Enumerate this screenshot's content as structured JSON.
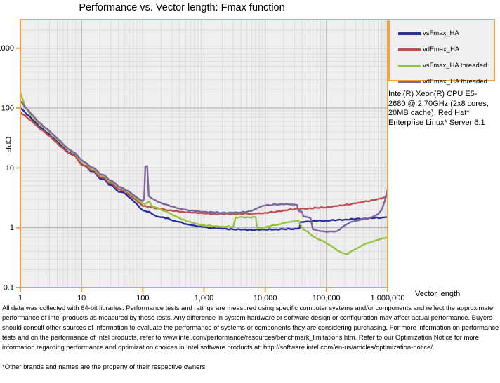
{
  "title": "Performance vs. Vector length: Fmax function",
  "system_info_lines": [
    "Intel(R) Xeon(R) CPU E5-",
    "2680 @ 2.70GHz (2x8 cores,",
    "20MB cache), Red Hat*",
    "Enterprise Linux* Server 6.1"
  ],
  "footer": {
    "disclaimer": "All data was collected with 64-bit libraries. Performance tests and ratings are measured using specific computer systems and/or components and reflect the approximate performance of Intel products as measured by those tests. Any difference in system hardware or software design or configuration may affect actual performance. Buyers should consult other sources of information to evaluate the performance of systems or components they are considering purchasing. For more information on performance tests and on the performance of Intel products, refer to www.intel.com/performance/resources/benchmark_limitations.htm.  Refer to our Optimization Notice for more information regarding performance and optimization choices in Intel software products at: http://software.intel.com/en-us/articles/optimization-notice/.",
    "footnote": "*Other brands and names are the property of their respective owners"
  },
  "colors": {
    "frame_orange": "#f8a03a",
    "plot_background": "#efefef",
    "grid_major": "#ababab",
    "grid_minor": "#dbdbdb",
    "text": "#000000"
  },
  "chart_data": {
    "type": "line",
    "title": "Performance vs. Vector length: Fmax function",
    "xlabel": "Vector length",
    "ylabel": "CPE",
    "x_scale": "log",
    "y_scale": "log",
    "xlim": [
      1,
      1000000
    ],
    "ylim": [
      0.1,
      3000
    ],
    "grid": "major and minor log gridlines, both axes",
    "legend_position": "outside top-right",
    "x_ticks": {
      "values": [
        1,
        10,
        100,
        1000,
        10000,
        100000,
        1000000
      ],
      "labels": [
        "1",
        "10",
        "100",
        "1,000",
        "10,000",
        "100,000",
        "1,000,000"
      ]
    },
    "y_ticks": {
      "values": [
        1000,
        100,
        10,
        1,
        0.1
      ],
      "labels": [
        "1000",
        "100",
        "10",
        "1",
        "0.1"
      ]
    },
    "series": [
      {
        "name": "vsFmax_HA",
        "color": "#2a2f9c",
        "points": [
          [
            1,
            100
          ],
          [
            1.5,
            68
          ],
          [
            2,
            50
          ],
          [
            3,
            36
          ],
          [
            4,
            27
          ],
          [
            5,
            22
          ],
          [
            6,
            18.5
          ],
          [
            7,
            17
          ],
          [
            8,
            16
          ],
          [
            9,
            13
          ],
          [
            10,
            11.5
          ],
          [
            12,
            10.5
          ],
          [
            14,
            8.8
          ],
          [
            16,
            8.7
          ],
          [
            20,
            6.6
          ],
          [
            24,
            6.4
          ],
          [
            28,
            5.2
          ],
          [
            32,
            5.1
          ],
          [
            40,
            4.0
          ],
          [
            48,
            3.9
          ],
          [
            64,
            3.1
          ],
          [
            80,
            2.5
          ],
          [
            100,
            1.95
          ],
          [
            128,
            1.85
          ],
          [
            160,
            1.6
          ],
          [
            200,
            1.5
          ],
          [
            256,
            1.45
          ],
          [
            320,
            1.3
          ],
          [
            400,
            1.25
          ],
          [
            512,
            1.15
          ],
          [
            640,
            1.1
          ],
          [
            800,
            1.05
          ],
          [
            1000,
            1.02
          ],
          [
            1500,
            0.98
          ],
          [
            2000,
            0.96
          ],
          [
            3000,
            0.94
          ],
          [
            4000,
            0.93
          ],
          [
            6000,
            0.92
          ],
          [
            8000,
            0.92
          ],
          [
            10000,
            0.93
          ],
          [
            15000,
            0.94
          ],
          [
            20000,
            0.95
          ],
          [
            30000,
            0.96
          ],
          [
            36000,
            0.97
          ],
          [
            38000,
            1.25
          ],
          [
            50000,
            1.28
          ],
          [
            70000,
            1.3
          ],
          [
            100000,
            1.32
          ],
          [
            150000,
            1.35
          ],
          [
            200000,
            1.37
          ],
          [
            300000,
            1.4
          ],
          [
            400000,
            1.42
          ],
          [
            600000,
            1.45
          ],
          [
            800000,
            1.48
          ],
          [
            1000000,
            1.52
          ]
        ]
      },
      {
        "name": "vdFmax_HA",
        "color": "#c0504d",
        "points": [
          [
            1,
            85
          ],
          [
            1.5,
            62
          ],
          [
            2,
            47
          ],
          [
            3,
            34
          ],
          [
            4,
            26
          ],
          [
            5,
            21
          ],
          [
            6,
            18
          ],
          [
            7,
            16.5
          ],
          [
            8,
            15.5
          ],
          [
            9,
            12.8
          ],
          [
            10,
            11.2
          ],
          [
            12,
            10.8
          ],
          [
            14,
            9.2
          ],
          [
            16,
            9.0
          ],
          [
            20,
            7.0
          ],
          [
            24,
            6.8
          ],
          [
            28,
            5.6
          ],
          [
            32,
            5.4
          ],
          [
            40,
            4.4
          ],
          [
            48,
            4.2
          ],
          [
            64,
            3.4
          ],
          [
            80,
            2.8
          ],
          [
            100,
            2.3
          ],
          [
            128,
            2.25
          ],
          [
            160,
            2.1
          ],
          [
            200,
            2.05
          ],
          [
            256,
            1.95
          ],
          [
            320,
            1.9
          ],
          [
            400,
            1.85
          ],
          [
            512,
            1.8
          ],
          [
            640,
            1.78
          ],
          [
            800,
            1.75
          ],
          [
            1000,
            1.73
          ],
          [
            1500,
            1.7
          ],
          [
            2000,
            1.7
          ],
          [
            3000,
            1.7
          ],
          [
            4000,
            1.72
          ],
          [
            6000,
            1.73
          ],
          [
            8000,
            1.75
          ],
          [
            10000,
            1.78
          ],
          [
            15000,
            1.85
          ],
          [
            20000,
            1.95
          ],
          [
            30000,
            2.05
          ],
          [
            50000,
            2.1
          ],
          [
            70000,
            2.15
          ],
          [
            100000,
            2.2
          ],
          [
            150000,
            2.3
          ],
          [
            200000,
            2.4
          ],
          [
            300000,
            2.55
          ],
          [
            400000,
            2.7
          ],
          [
            600000,
            2.9
          ],
          [
            800000,
            3.1
          ],
          [
            950000,
            3.3
          ],
          [
            1000000,
            4.2
          ]
        ]
      },
      {
        "name": "vsFmax_HA threaded",
        "color": "#98c13d",
        "points": [
          [
            1,
            180
          ],
          [
            1.2,
            105
          ],
          [
            1.5,
            75
          ],
          [
            2,
            56
          ],
          [
            3,
            40
          ],
          [
            4,
            30
          ],
          [
            5,
            24
          ],
          [
            6,
            20.5
          ],
          [
            7,
            18.5
          ],
          [
            8,
            17
          ],
          [
            9,
            14.5
          ],
          [
            10,
            13
          ],
          [
            12,
            11.5
          ],
          [
            14,
            10
          ],
          [
            16,
            9.6
          ],
          [
            20,
            7.6
          ],
          [
            24,
            7.2
          ],
          [
            28,
            6.0
          ],
          [
            32,
            5.8
          ],
          [
            40,
            4.7
          ],
          [
            48,
            4.4
          ],
          [
            64,
            3.6
          ],
          [
            80,
            3.0
          ],
          [
            100,
            2.55
          ],
          [
            110,
            2.5
          ],
          [
            128,
            2.75
          ],
          [
            140,
            2.3
          ],
          [
            160,
            2.2
          ],
          [
            200,
            2.0
          ],
          [
            256,
            1.8
          ],
          [
            320,
            1.6
          ],
          [
            400,
            1.45
          ],
          [
            512,
            1.3
          ],
          [
            640,
            1.22
          ],
          [
            800,
            1.15
          ],
          [
            1000,
            1.1
          ],
          [
            1500,
            1.06
          ],
          [
            2000,
            1.05
          ],
          [
            3000,
            1.04
          ],
          [
            3300,
            1.5
          ],
          [
            5000,
            1.5
          ],
          [
            7000,
            1.5
          ],
          [
            7300,
            1.02
          ],
          [
            8000,
            1.0
          ],
          [
            10000,
            1.02
          ],
          [
            13000,
            1.1
          ],
          [
            16000,
            1.12
          ],
          [
            20000,
            1.2
          ],
          [
            25000,
            1.25
          ],
          [
            30000,
            1.28
          ],
          [
            35000,
            1.3
          ],
          [
            40000,
            1.0
          ],
          [
            45000,
            0.9
          ],
          [
            50000,
            0.85
          ],
          [
            60000,
            0.72
          ],
          [
            70000,
            0.66
          ],
          [
            80000,
            0.62
          ],
          [
            100000,
            0.55
          ],
          [
            120000,
            0.5
          ],
          [
            150000,
            0.42
          ],
          [
            180000,
            0.38
          ],
          [
            220000,
            0.36
          ],
          [
            250000,
            0.4
          ],
          [
            300000,
            0.44
          ],
          [
            350000,
            0.48
          ],
          [
            400000,
            0.52
          ],
          [
            500000,
            0.56
          ],
          [
            600000,
            0.6
          ],
          [
            700000,
            0.63
          ],
          [
            800000,
            0.66
          ],
          [
            1000000,
            0.68
          ]
        ]
      },
      {
        "name": "vdFmax_HA threaded",
        "color": "#8064a2",
        "points": [
          [
            1,
            130
          ],
          [
            1.5,
            80
          ],
          [
            2,
            58
          ],
          [
            3,
            41
          ],
          [
            4,
            31
          ],
          [
            5,
            25
          ],
          [
            6,
            21
          ],
          [
            7,
            19
          ],
          [
            8,
            17.5
          ],
          [
            9,
            15
          ],
          [
            10,
            13.5
          ],
          [
            12,
            12
          ],
          [
            14,
            10.4
          ],
          [
            16,
            10
          ],
          [
            20,
            7.9
          ],
          [
            24,
            7.5
          ],
          [
            28,
            6.3
          ],
          [
            32,
            6.0
          ],
          [
            40,
            4.9
          ],
          [
            48,
            4.6
          ],
          [
            64,
            3.8
          ],
          [
            80,
            3.2
          ],
          [
            100,
            2.8
          ],
          [
            105,
            3.0
          ],
          [
            110,
            10.5
          ],
          [
            118,
            10.8
          ],
          [
            125,
            3.4
          ],
          [
            128,
            3.3
          ],
          [
            160,
            2.9
          ],
          [
            200,
            2.6
          ],
          [
            256,
            2.4
          ],
          [
            320,
            2.25
          ],
          [
            400,
            2.1
          ],
          [
            512,
            2.0
          ],
          [
            640,
            1.95
          ],
          [
            800,
            1.9
          ],
          [
            1000,
            1.85
          ],
          [
            1500,
            1.8
          ],
          [
            2000,
            1.78
          ],
          [
            3000,
            1.78
          ],
          [
            4000,
            1.8
          ],
          [
            6000,
            1.9
          ],
          [
            8000,
            2.2
          ],
          [
            10000,
            2.35
          ],
          [
            15000,
            2.45
          ],
          [
            20000,
            2.45
          ],
          [
            25000,
            2.45
          ],
          [
            30000,
            2.45
          ],
          [
            33000,
            2.4
          ],
          [
            35000,
            1.9
          ],
          [
            40000,
            1.85
          ],
          [
            42000,
            1.55
          ],
          [
            50000,
            1.5
          ],
          [
            55000,
            1.45
          ],
          [
            60000,
            0.95
          ],
          [
            70000,
            0.9
          ],
          [
            80000,
            0.88
          ],
          [
            100000,
            0.85
          ],
          [
            120000,
            0.87
          ],
          [
            150000,
            0.88
          ],
          [
            200000,
            1.1
          ],
          [
            250000,
            1.25
          ],
          [
            300000,
            1.3
          ],
          [
            350000,
            1.35
          ],
          [
            400000,
            1.4
          ],
          [
            500000,
            1.45
          ],
          [
            600000,
            1.55
          ],
          [
            700000,
            1.7
          ],
          [
            800000,
            2.0
          ],
          [
            900000,
            2.8
          ],
          [
            1000000,
            4.4
          ]
        ]
      }
    ]
  }
}
